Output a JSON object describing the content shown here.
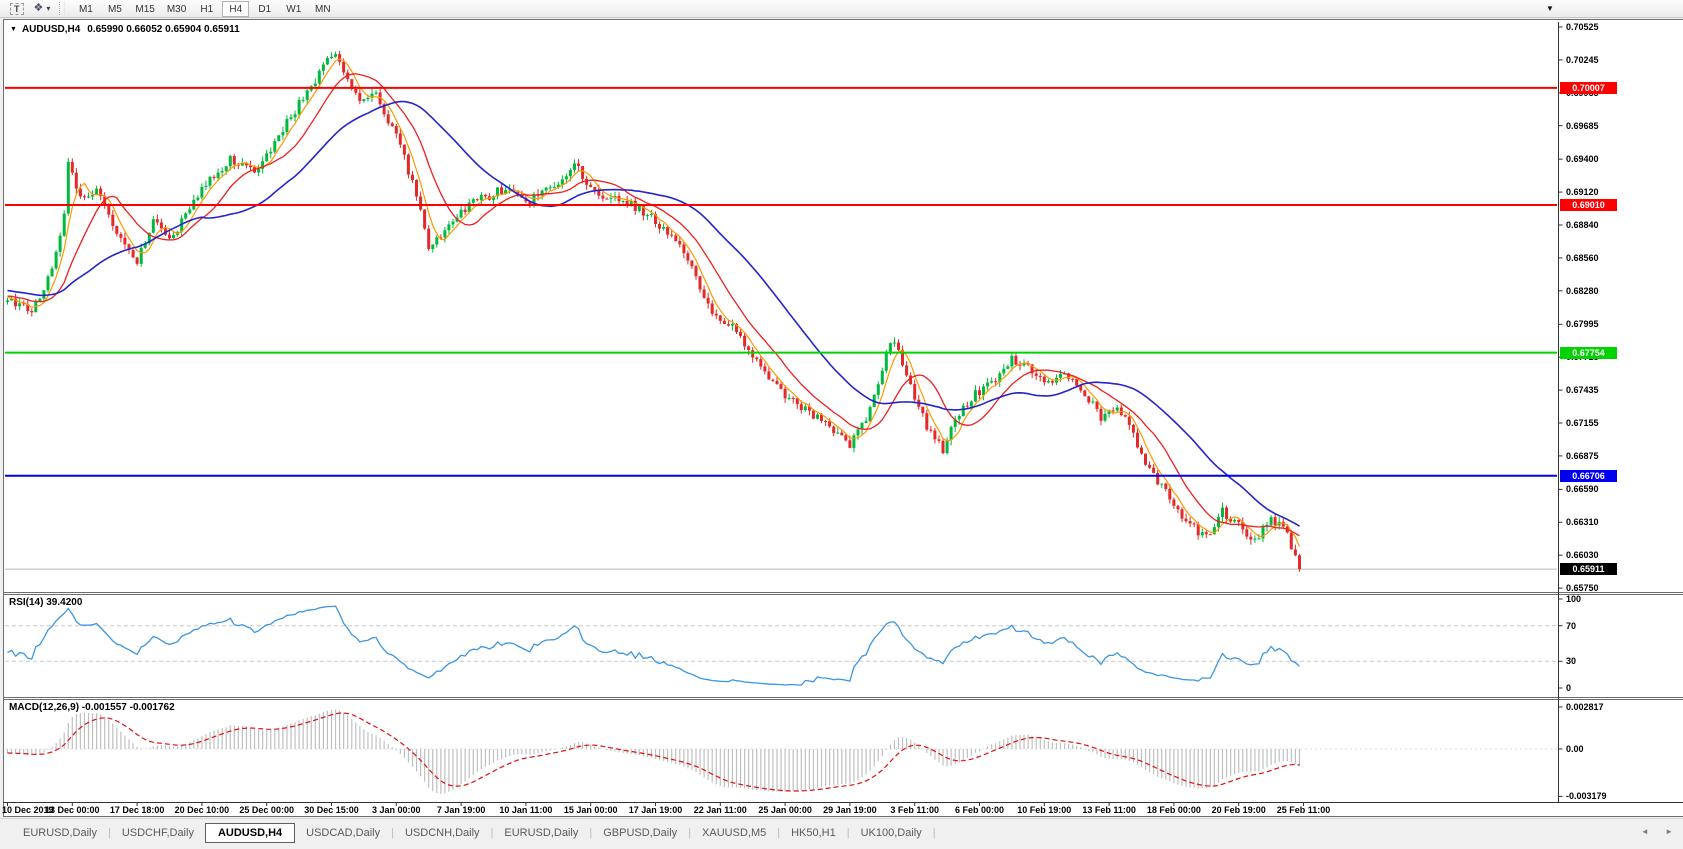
{
  "toolbar": {
    "text_tool_label": "T",
    "timeframes": [
      "M1",
      "M5",
      "M15",
      "M30",
      "H1",
      "H4",
      "D1",
      "W1",
      "MN"
    ],
    "active_timeframe": "H4"
  },
  "icons": {
    "indicator_diamonds": "❖",
    "dropdown_caret": "▾",
    "title_marker": "▼",
    "scroll_left": "◄",
    "scroll_right": "►",
    "autoscroll_marker": "▼"
  },
  "chart": {
    "symbol_title": "AUDUSD,H4",
    "ohlc_text": "0.65990 0.66052 0.65904 0.65911",
    "price_axis_labels": [
      "0.70525",
      "0.70245",
      "0.69965",
      "0.69685",
      "0.69400",
      "0.69120",
      "0.68840",
      "0.68560",
      "0.68280",
      "0.67995",
      "0.67715",
      "0.67435",
      "0.67155",
      "0.66875",
      "0.66590",
      "0.66310",
      "0.66030",
      "0.65750"
    ],
    "time_axis_labels": [
      "10 Dec 2019",
      "13 Dec 00:00",
      "17 Dec 18:00",
      "20 Dec 10:00",
      "25 Dec 00:00",
      "30 Dec 15:00",
      "3 Jan 00:00",
      "7 Jan 19:00",
      "10 Jan 11:00",
      "15 Jan 00:00",
      "17 Jan 19:00",
      "22 Jan 11:00",
      "25 Jan 00:00",
      "29 Jan 19:00",
      "3 Feb 11:00",
      "6 Feb 00:00",
      "10 Feb 19:00",
      "13 Feb 11:00",
      "18 Feb 00:00",
      "20 Feb 19:00",
      "25 Feb 11:00"
    ]
  },
  "indicator_panels": {
    "rsi_label": "RSI(14) 39.4200",
    "rsi_axis_labels": [
      "100",
      "70",
      "30",
      "0"
    ],
    "macd_label": "MACD(12,26,9) -0.001557 -0.001762",
    "macd_axis_labels": [
      "0.002817",
      "0.00",
      "-0.003179"
    ]
  },
  "tabs": {
    "items": [
      "EURUSD,Daily",
      "USDCHF,Daily",
      "AUDUSD,H4",
      "USDCAD,Daily",
      "USDCNH,Daily",
      "EURUSD,Daily",
      "GBPUSD,Daily",
      "XAUUSD,M5",
      "HK50,H1",
      "UK100,Daily"
    ],
    "active": "AUDUSD,H4",
    "separator": "|"
  },
  "chart_data": {
    "type": "candlestick",
    "symbol": "AUDUSD",
    "timeframe": "H4",
    "ohlc_current": {
      "open": 0.6599,
      "high": 0.66052,
      "low": 0.65904,
      "close": 0.65911
    },
    "price_axis": {
      "top_price": 0.70525,
      "price_per_pixel": 8.51e-05,
      "tick_step": 0.0028
    },
    "levels": [
      {
        "price": 0.70007,
        "label": "0.70007",
        "color": "#FF0000",
        "width": 2
      },
      {
        "price": 0.6901,
        "label": "0.69010",
        "color": "#FF0000",
        "width": 2
      },
      {
        "price": 0.67754,
        "label": "0.67754",
        "color": "#00D300",
        "width": 2
      },
      {
        "price": 0.66706,
        "label": "0.66706",
        "color": "#0000F0",
        "width": 2
      }
    ],
    "current_price": {
      "value": 0.65911,
      "label": "0.65911",
      "line_color": "#BABABA",
      "badge_bg": "#000000"
    },
    "candles": {
      "count": 320,
      "up_color": "#00B93E",
      "down_color": "#E22A2A",
      "price_path_anchors": [
        [
          -40,
          0.6838
        ],
        [
          0,
          0.6822
        ],
        [
          6,
          0.6812
        ],
        [
          11,
          0.6845
        ],
        [
          14,
          0.6895
        ],
        [
          15,
          0.694
        ],
        [
          16,
          0.6925
        ],
        [
          18,
          0.6908
        ],
        [
          22,
          0.6912
        ],
        [
          27,
          0.6878
        ],
        [
          32,
          0.6852
        ],
        [
          36,
          0.689
        ],
        [
          40,
          0.687
        ],
        [
          48,
          0.6916
        ],
        [
          55,
          0.694
        ],
        [
          61,
          0.6928
        ],
        [
          69,
          0.6972
        ],
        [
          75,
          0.7002
        ],
        [
          81,
          0.7033
        ],
        [
          84,
          0.701
        ],
        [
          87,
          0.6988
        ],
        [
          91,
          0.6996
        ],
        [
          96,
          0.696
        ],
        [
          101,
          0.691
        ],
        [
          104,
          0.6866
        ],
        [
          108,
          0.688
        ],
        [
          112,
          0.6896
        ],
        [
          117,
          0.6906
        ],
        [
          123,
          0.6916
        ],
        [
          129,
          0.6905
        ],
        [
          136,
          0.6918
        ],
        [
          140,
          0.6937
        ],
        [
          145,
          0.691
        ],
        [
          152,
          0.6906
        ],
        [
          158,
          0.6893
        ],
        [
          163,
          0.6876
        ],
        [
          168,
          0.6856
        ],
        [
          171,
          0.6831
        ],
        [
          175,
          0.6806
        ],
        [
          179,
          0.6796
        ],
        [
          184,
          0.6771
        ],
        [
          189,
          0.675
        ],
        [
          194,
          0.6733
        ],
        [
          199,
          0.6722
        ],
        [
          203,
          0.6713
        ],
        [
          208,
          0.6696
        ],
        [
          211,
          0.6712
        ],
        [
          215,
          0.6748
        ],
        [
          218,
          0.6787
        ],
        [
          221,
          0.6768
        ],
        [
          224,
          0.6736
        ],
        [
          228,
          0.6706
        ],
        [
          231,
          0.6693
        ],
        [
          234,
          0.672
        ],
        [
          239,
          0.674
        ],
        [
          244,
          0.6752
        ],
        [
          248,
          0.6771
        ],
        [
          252,
          0.6762
        ],
        [
          257,
          0.675
        ],
        [
          262,
          0.6756
        ],
        [
          266,
          0.6741
        ],
        [
          270,
          0.6721
        ],
        [
          274,
          0.6731
        ],
        [
          278,
          0.6706
        ],
        [
          281,
          0.6681
        ],
        [
          285,
          0.6661
        ],
        [
          289,
          0.6641
        ],
        [
          293,
          0.6626
        ],
        [
          296,
          0.6617
        ],
        [
          300,
          0.664
        ],
        [
          304,
          0.6629
        ],
        [
          308,
          0.6616
        ],
        [
          312,
          0.6636
        ],
        [
          316,
          0.6621
        ],
        [
          319,
          0.65911
        ]
      ]
    },
    "moving_averages": [
      {
        "period": 5,
        "color": "#FF9900",
        "width": 1.2
      },
      {
        "period": 13,
        "color": "#EE2020",
        "width": 1.3
      },
      {
        "period": 34,
        "color": "#2424CC",
        "width": 1.6
      }
    ],
    "rsi": {
      "period": 14,
      "current_value": 39.42,
      "line_color": "#3D96E0",
      "overbought": 70,
      "oversold": 30,
      "range": [
        0,
        100
      ],
      "level_color": "#C9C9C9"
    },
    "macd": {
      "fast": 12,
      "slow": 26,
      "signal": 9,
      "macd_value": -0.001557,
      "signal_value": -0.001762,
      "histogram_color": "#BFBFBF",
      "signal_color": "#E01010",
      "range": [
        -0.003179,
        0.002817
      ]
    }
  }
}
